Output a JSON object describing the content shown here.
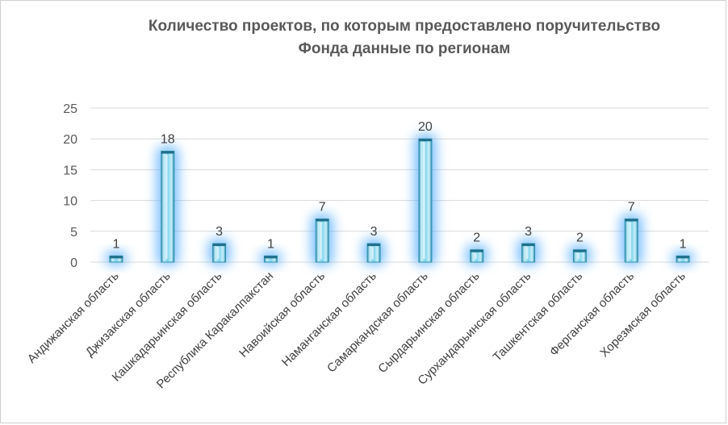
{
  "chart_data": {
    "type": "bar",
    "title_line1": "Количество проектов, по которым предоставлено поручительство",
    "title_line2": "Фонда данные по регионам",
    "categories": [
      "Андижанская область",
      "Джизакская область",
      "Кашкадарьинская область",
      "Республика Каракалпакстан",
      "Навоийская область",
      "Наманганская область",
      "Самаркандская область",
      "Сырдарьинская область",
      "Сурхандарьинская область",
      "Ташкентская область",
      "Ферганская область",
      "Хорезмская область"
    ],
    "values": [
      1,
      18,
      3,
      1,
      7,
      3,
      20,
      2,
      3,
      2,
      7,
      1
    ],
    "ylim": [
      0,
      25
    ],
    "yticks": [
      0,
      5,
      10,
      15,
      20,
      25
    ],
    "grid": true,
    "legend": "none",
    "colors": {
      "bar": "#7fd3ec",
      "bar_light": "#c9f0fa",
      "bar_dark": "#2f8fae",
      "glow": "#4aa8ff",
      "grid": "#d9d9d9",
      "text": "#595959"
    }
  }
}
